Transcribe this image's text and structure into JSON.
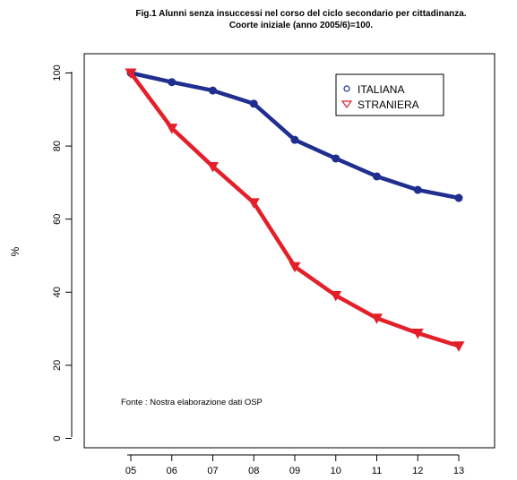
{
  "chart_data": {
    "type": "line",
    "title": "Fig.1  Alunni senza insuccessi nel corso del ciclo secondario per cittadinanza.",
    "subtitle": "Coorte iniziale (anno 2005/6)=100.",
    "xlabel": "",
    "ylabel": "%",
    "categories": [
      "05",
      "06",
      "07",
      "08",
      "09",
      "10",
      "11",
      "12",
      "13"
    ],
    "yticks": [
      0,
      20,
      40,
      60,
      80,
      100
    ],
    "ylim": [
      -4,
      104
    ],
    "grid": false,
    "legend_position": "top-right",
    "series": [
      {
        "name": "ITALIANA",
        "color": "#1f2e8f",
        "marker": "circle",
        "values": [
          100,
          97.5,
          95.2,
          91.6,
          81.7,
          76.6,
          71.7,
          68,
          65.8
        ]
      },
      {
        "name": "STRANIERA",
        "color": "#e3202a",
        "marker": "triangle-down",
        "values": [
          100,
          84.9,
          74.4,
          64.5,
          47,
          39.1,
          32.9,
          28.8,
          25.3
        ]
      }
    ],
    "annotation": "Fonte : Nostra elaborazione dati OSP"
  }
}
